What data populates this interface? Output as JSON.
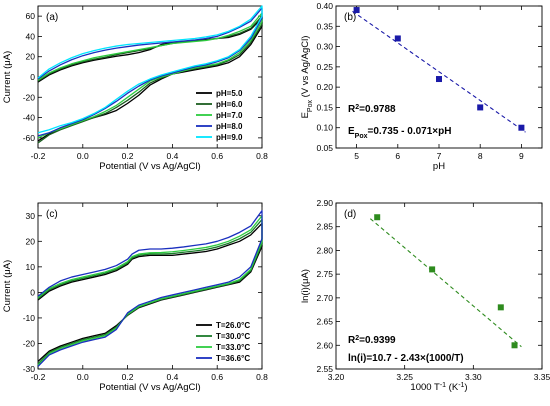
{
  "chart_data": [
    {
      "panel": "(a)",
      "type": "line",
      "xlabel": "Potential (V vs Ag/AgCl)",
      "ylabel": "Current (μA)",
      "xlim": [
        -0.2,
        0.8
      ],
      "ylim": [
        -70,
        70
      ],
      "xticks": [
        -0.2,
        0.0,
        0.2,
        0.4,
        0.6,
        0.8
      ],
      "yticks": [
        -60,
        -40,
        -20,
        0,
        20,
        40,
        60
      ],
      "xtick_labels": [
        "-0.2",
        "0.0",
        "0.2",
        "0.4",
        "0.6",
        "0.8"
      ],
      "ytick_labels": [
        "-60",
        "-40",
        "-20",
        "0",
        "20",
        "40",
        "60"
      ],
      "legend_position": "bottom-right",
      "series": [
        {
          "name": "pH=5.0",
          "color": "#000000",
          "x": [
            -0.2,
            -0.15,
            -0.1,
            -0.05,
            0.0,
            0.05,
            0.1,
            0.15,
            0.2,
            0.25,
            0.3,
            0.35,
            0.4,
            0.45,
            0.5,
            0.55,
            0.6,
            0.65,
            0.7,
            0.75,
            0.8,
            0.8,
            0.75,
            0.7,
            0.65,
            0.6,
            0.55,
            0.5,
            0.45,
            0.4,
            0.35,
            0.3,
            0.25,
            0.2,
            0.15,
            0.1,
            0.05,
            0.0,
            -0.05,
            -0.1,
            -0.15,
            -0.2
          ],
          "y": [
            -5,
            2,
            7,
            11,
            14,
            16.5,
            18.5,
            20.5,
            22,
            24,
            27,
            32,
            34,
            35,
            36,
            37,
            38,
            39,
            42,
            47,
            58,
            50,
            32,
            20,
            14,
            11,
            9,
            7,
            5,
            3,
            -2,
            -8,
            -18,
            -26,
            -33,
            -37,
            -40,
            -43,
            -47,
            -51,
            -56,
            -63
          ]
        },
        {
          "name": "pH=6.0",
          "color": "#1b5e20",
          "x": [
            -0.2,
            -0.15,
            -0.1,
            -0.05,
            0.0,
            0.05,
            0.1,
            0.15,
            0.2,
            0.25,
            0.3,
            0.35,
            0.4,
            0.45,
            0.5,
            0.55,
            0.6,
            0.65,
            0.7,
            0.75,
            0.8,
            0.8,
            0.75,
            0.7,
            0.65,
            0.6,
            0.55,
            0.5,
            0.45,
            0.4,
            0.35,
            0.3,
            0.25,
            0.2,
            0.15,
            0.1,
            0.05,
            0.0,
            -0.05,
            -0.1,
            -0.15,
            -0.2
          ],
          "y": [
            -4,
            3,
            8,
            12,
            15,
            17.5,
            19.5,
            22,
            24,
            26,
            28,
            31,
            33,
            34.5,
            35.5,
            36.5,
            38,
            40,
            43,
            48,
            60,
            52,
            34,
            22,
            16,
            12,
            10,
            8,
            6,
            3,
            -1,
            -6,
            -15,
            -23,
            -30,
            -36,
            -40,
            -44,
            -48,
            -52,
            -57,
            -65
          ]
        },
        {
          "name": "pH=7.0",
          "color": "#2ecc40",
          "x": [
            -0.2,
            -0.15,
            -0.1,
            -0.05,
            0.0,
            0.05,
            0.1,
            0.15,
            0.2,
            0.25,
            0.3,
            0.35,
            0.4,
            0.45,
            0.5,
            0.55,
            0.6,
            0.65,
            0.7,
            0.75,
            0.8,
            0.8,
            0.75,
            0.7,
            0.65,
            0.6,
            0.55,
            0.5,
            0.45,
            0.4,
            0.35,
            0.3,
            0.25,
            0.2,
            0.15,
            0.1,
            0.05,
            0.0,
            -0.05,
            -0.1,
            -0.15,
            -0.2
          ],
          "y": [
            -3,
            4,
            9,
            13,
            16,
            19,
            21,
            23,
            25,
            27,
            29,
            31,
            33,
            34,
            35,
            36,
            38,
            41,
            45,
            50,
            63,
            55,
            36,
            24,
            17,
            13,
            11,
            9,
            6,
            3,
            0,
            -4,
            -12,
            -20,
            -28,
            -34,
            -39,
            -43,
            -47,
            -51,
            -55,
            -60
          ]
        },
        {
          "name": "pH=8.0",
          "color": "#1a2fbf",
          "x": [
            -0.2,
            -0.15,
            -0.1,
            -0.05,
            0.0,
            0.05,
            0.1,
            0.15,
            0.2,
            0.25,
            0.3,
            0.35,
            0.4,
            0.45,
            0.5,
            0.55,
            0.6,
            0.65,
            0.7,
            0.75,
            0.8,
            0.8,
            0.75,
            0.7,
            0.65,
            0.6,
            0.55,
            0.5,
            0.45,
            0.4,
            0.35,
            0.3,
            0.25,
            0.2,
            0.15,
            0.1,
            0.05,
            0.0,
            -0.05,
            -0.1,
            -0.15,
            -0.2
          ],
          "y": [
            -2,
            6,
            12,
            17,
            21,
            24,
            26.5,
            28.5,
            30,
            31.5,
            32.5,
            33.5,
            34.5,
            35.5,
            36.5,
            38,
            40,
            44,
            49,
            55,
            68,
            58,
            38,
            26,
            19,
            15,
            12,
            10,
            7,
            4,
            1,
            -3,
            -9,
            -16,
            -24,
            -31,
            -37,
            -42,
            -46,
            -50,
            -55,
            -58
          ]
        },
        {
          "name": "pH=9.0",
          "color": "#00e5ff",
          "x": [
            -0.2,
            -0.15,
            -0.1,
            -0.05,
            0.0,
            0.05,
            0.1,
            0.15,
            0.2,
            0.25,
            0.3,
            0.35,
            0.4,
            0.45,
            0.5,
            0.55,
            0.6,
            0.65,
            0.7,
            0.75,
            0.8,
            0.8,
            0.75,
            0.7,
            0.65,
            0.6,
            0.55,
            0.5,
            0.45,
            0.4,
            0.35,
            0.3,
            0.25,
            0.2,
            0.15,
            0.1,
            0.05,
            0.0,
            -0.05,
            -0.1,
            -0.15,
            -0.2
          ],
          "y": [
            -1,
            8,
            14,
            19,
            23,
            26,
            28.5,
            30.5,
            32,
            33,
            34,
            35,
            36,
            37,
            38,
            39.5,
            41.5,
            45,
            50,
            57,
            70,
            60,
            40,
            27,
            20,
            16,
            13,
            11,
            8,
            5,
            2,
            -2,
            -7,
            -14,
            -22,
            -30,
            -36,
            -41,
            -45,
            -48,
            -52,
            -55
          ]
        }
      ]
    },
    {
      "panel": "(b)",
      "type": "scatter",
      "xlabel": "pH",
      "ylabel": "E",
      "ylabel_sub": "Pox",
      "ylabel_tail": " (V vs Ag/AgCl)",
      "xlim": [
        4.5,
        9.5
      ],
      "ylim": [
        0.05,
        0.4
      ],
      "xticks": [
        5,
        6,
        7,
        8,
        9
      ],
      "yticks": [
        0.05,
        0.1,
        0.15,
        0.2,
        0.25,
        0.3,
        0.35,
        0.4
      ],
      "xtick_labels": [
        "5",
        "6",
        "7",
        "8",
        "9"
      ],
      "ytick_labels": [
        "0.05",
        "0.10",
        "0.15",
        "0.20",
        "0.25",
        "0.30",
        "0.35",
        "0.40"
      ],
      "marker_color": "#1a1aa8",
      "x": [
        5,
        6,
        7,
        8,
        9
      ],
      "y": [
        0.39,
        0.32,
        0.22,
        0.15,
        0.1
      ],
      "fit": {
        "x": [
          4.9,
          9.1
        ],
        "y": [
          0.387,
          0.089
        ],
        "color": "#1a1aa8"
      },
      "annotation_r2_prefix": "R",
      "annotation_r2_sup": "2",
      "annotation_r2_value": "=0.9788",
      "annotation_eq_prefix": "E",
      "annotation_eq_sub": "Pox",
      "annotation_eq_tail": "=0.735 - 0.071×pH"
    },
    {
      "panel": "(c)",
      "type": "line",
      "xlabel": "Potential (V vs Ag/AgCl)",
      "ylabel": "Current (μA)",
      "xlim": [
        -0.2,
        0.8
      ],
      "ylim": [
        -30,
        35
      ],
      "xticks": [
        -0.2,
        0.0,
        0.2,
        0.4,
        0.6,
        0.8
      ],
      "yticks": [
        -30,
        -20,
        -10,
        0,
        10,
        20,
        30
      ],
      "xtick_labels": [
        "-0.2",
        "0.0",
        "0.2",
        "0.4",
        "0.6",
        "0.8"
      ],
      "ytick_labels": [
        "-30",
        "-20",
        "-10",
        "0",
        "10",
        "20",
        "30"
      ],
      "legend_position": "bottom-right",
      "series": [
        {
          "name": "T=26.0°C",
          "color": "#000000",
          "x": [
            -0.2,
            -0.15,
            -0.1,
            -0.05,
            0.0,
            0.05,
            0.1,
            0.15,
            0.2,
            0.22,
            0.25,
            0.3,
            0.35,
            0.4,
            0.45,
            0.5,
            0.55,
            0.6,
            0.65,
            0.7,
            0.75,
            0.8,
            0.8,
            0.75,
            0.7,
            0.65,
            0.6,
            0.55,
            0.5,
            0.45,
            0.4,
            0.35,
            0.3,
            0.25,
            0.2,
            0.15,
            0.1,
            0.05,
            0.0,
            -0.05,
            -0.1,
            -0.15,
            -0.2
          ],
          "y": [
            -3,
            0.5,
            2.5,
            4,
            5,
            6,
            7,
            8.5,
            11,
            13,
            14,
            14.5,
            14.5,
            14.5,
            15,
            15.5,
            16,
            17,
            18.5,
            20,
            22.5,
            27,
            18,
            8,
            4,
            3,
            2,
            1,
            0,
            -1,
            -2,
            -3,
            -4.5,
            -6,
            -9,
            -13,
            -16,
            -17,
            -18,
            -19.5,
            -21,
            -23,
            -27
          ]
        },
        {
          "name": "T=30.0°C",
          "color": "#1b7a2a",
          "x": [
            -0.2,
            -0.15,
            -0.1,
            -0.05,
            0.0,
            0.05,
            0.1,
            0.15,
            0.2,
            0.22,
            0.25,
            0.3,
            0.35,
            0.4,
            0.45,
            0.5,
            0.55,
            0.6,
            0.65,
            0.7,
            0.75,
            0.8,
            0.8,
            0.75,
            0.7,
            0.65,
            0.6,
            0.55,
            0.5,
            0.45,
            0.4,
            0.35,
            0.3,
            0.25,
            0.2,
            0.15,
            0.1,
            0.05,
            0.0,
            -0.05,
            -0.1,
            -0.15,
            -0.2
          ],
          "y": [
            -2.5,
            1,
            3,
            4.5,
            5.5,
            6.5,
            7.5,
            9,
            11.5,
            13.5,
            14.5,
            15,
            15,
            15.2,
            15.7,
            16.2,
            16.8,
            17.8,
            19.2,
            21,
            23.5,
            28.5,
            19,
            8.5,
            4.5,
            3.2,
            2.2,
            1.2,
            0.2,
            -0.8,
            -1.8,
            -2.8,
            -4.2,
            -5.8,
            -8.8,
            -13.5,
            -16.5,
            -17.5,
            -18.5,
            -20,
            -21.5,
            -23.5,
            -28
          ]
        },
        {
          "name": "T=33.0°C",
          "color": "#2ecc40",
          "x": [
            -0.2,
            -0.15,
            -0.1,
            -0.05,
            0.0,
            0.05,
            0.1,
            0.15,
            0.2,
            0.22,
            0.25,
            0.3,
            0.35,
            0.4,
            0.45,
            0.5,
            0.55,
            0.6,
            0.65,
            0.7,
            0.75,
            0.8,
            0.8,
            0.75,
            0.7,
            0.65,
            0.6,
            0.55,
            0.5,
            0.45,
            0.4,
            0.35,
            0.3,
            0.25,
            0.2,
            0.15,
            0.1,
            0.05,
            0.0,
            -0.05,
            -0.1,
            -0.15,
            -0.2
          ],
          "y": [
            -2,
            1.5,
            3.5,
            5,
            6,
            7,
            8,
            9.5,
            12,
            14,
            15,
            15.5,
            15.6,
            15.9,
            16.4,
            17,
            17.6,
            18.6,
            20,
            22,
            24.5,
            30,
            20,
            9,
            5,
            3.5,
            2.5,
            1.5,
            0.5,
            -0.5,
            -1.5,
            -2.5,
            -4,
            -5.5,
            -8.5,
            -14,
            -17,
            -18,
            -19,
            -20.5,
            -22,
            -24,
            -28.5
          ]
        },
        {
          "name": "T=36.6°C",
          "color": "#1a2fbf",
          "x": [
            -0.2,
            -0.15,
            -0.1,
            -0.05,
            0.0,
            0.05,
            0.1,
            0.15,
            0.2,
            0.22,
            0.25,
            0.3,
            0.35,
            0.4,
            0.45,
            0.5,
            0.55,
            0.6,
            0.65,
            0.7,
            0.75,
            0.8,
            0.8,
            0.75,
            0.7,
            0.65,
            0.6,
            0.55,
            0.5,
            0.45,
            0.4,
            0.35,
            0.3,
            0.25,
            0.2,
            0.15,
            0.1,
            0.05,
            0.0,
            -0.05,
            -0.1,
            -0.15,
            -0.2
          ],
          "y": [
            -1.5,
            2,
            4.5,
            6,
            7,
            8,
            9,
            10.5,
            13,
            15,
            16.5,
            17,
            17,
            17.3,
            17.8,
            18.4,
            19,
            20,
            21.5,
            23.5,
            26,
            32,
            21,
            10,
            6,
            4,
            3,
            2,
            1,
            0,
            -1,
            -2,
            -3.5,
            -5,
            -8,
            -14.5,
            -17.5,
            -18.5,
            -19.5,
            -21,
            -22.5,
            -24.5,
            -29
          ]
        }
      ]
    },
    {
      "panel": "(d)",
      "type": "scatter",
      "xlabel": "1000 T",
      "xlabel_sup": "-1",
      "xlabel_tail": " (K",
      "xlabel_tail_sup": "-1",
      "xlabel_end": ")",
      "ylabel": "ln(i)(μA)",
      "xlim": [
        3.2,
        3.35
      ],
      "ylim": [
        2.55,
        2.9
      ],
      "xticks": [
        3.2,
        3.25,
        3.3,
        3.35
      ],
      "yticks": [
        2.55,
        2.6,
        2.65,
        2.7,
        2.75,
        2.8,
        2.85,
        2.9
      ],
      "xtick_labels": [
        "3.20",
        "3.25",
        "3.30",
        "3.35"
      ],
      "ytick_labels": [
        "2.55",
        "2.60",
        "2.65",
        "2.70",
        "2.75",
        "2.80",
        "2.85",
        "2.90"
      ],
      "marker_color": "#2e8b1e",
      "x": [
        3.23,
        3.27,
        3.32,
        3.33
      ],
      "y": [
        2.87,
        2.76,
        2.68,
        2.6
      ],
      "fit": {
        "x": [
          3.225,
          3.335
        ],
        "y": [
          2.867,
          2.597
        ],
        "color": "#2e8b1e"
      },
      "annotation_r2_prefix": "R",
      "annotation_r2_sup": "2",
      "annotation_r2_value": "=0.9399",
      "annotation_eq": "ln(i)=10.7 - 2.43×(1000/T)"
    }
  ]
}
